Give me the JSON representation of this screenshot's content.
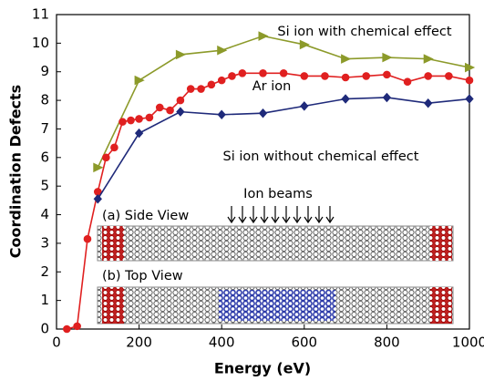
{
  "chart_data": {
    "type": "line",
    "xlabel": "Energy (eV)",
    "ylabel": "Coordination Defects",
    "xlim": [
      0,
      1000
    ],
    "ylim": [
      0,
      11
    ],
    "xticks": [
      0,
      200,
      400,
      600,
      800,
      1000
    ],
    "yticks": [
      0,
      1,
      2,
      3,
      4,
      5,
      6,
      7,
      8,
      9,
      10,
      11
    ],
    "series": [
      {
        "name": "Si ion with chemical effect",
        "color": "#8c9a2a",
        "marker": "triangle",
        "x": [
          100,
          200,
          300,
          400,
          500,
          600,
          700,
          800,
          900,
          1000
        ],
        "values": [
          5.65,
          8.7,
          9.6,
          9.75,
          10.25,
          9.95,
          9.45,
          9.5,
          9.45,
          9.15
        ]
      },
      {
        "name": "Ar ion",
        "color": "#e02020",
        "marker": "circle",
        "x": [
          25,
          50,
          75,
          100,
          120,
          140,
          160,
          180,
          200,
          225,
          250,
          275,
          300,
          325,
          350,
          375,
          400,
          425,
          450,
          500,
          550,
          600,
          650,
          700,
          750,
          800,
          850,
          900,
          950,
          1000
        ],
        "values": [
          0,
          0.1,
          3.15,
          4.8,
          6.0,
          6.35,
          7.25,
          7.3,
          7.35,
          7.4,
          7.75,
          7.65,
          8.0,
          8.4,
          8.4,
          8.55,
          8.7,
          8.85,
          8.95,
          8.95,
          8.95,
          8.85,
          8.85,
          8.8,
          8.85,
          8.9,
          8.65,
          8.85,
          8.85,
          8.7
        ]
      },
      {
        "name": "Si ion without chemical effect",
        "color": "#1f2a7a",
        "marker": "diamond",
        "x": [
          100,
          200,
          300,
          400,
          500,
          600,
          700,
          800,
          900,
          1000
        ],
        "values": [
          4.55,
          6.85,
          7.6,
          7.5,
          7.55,
          7.8,
          8.05,
          8.1,
          7.9,
          8.05
        ]
      }
    ],
    "annotations": [
      "Ion beams",
      "(a) Side View",
      "(b) Top View"
    ]
  }
}
